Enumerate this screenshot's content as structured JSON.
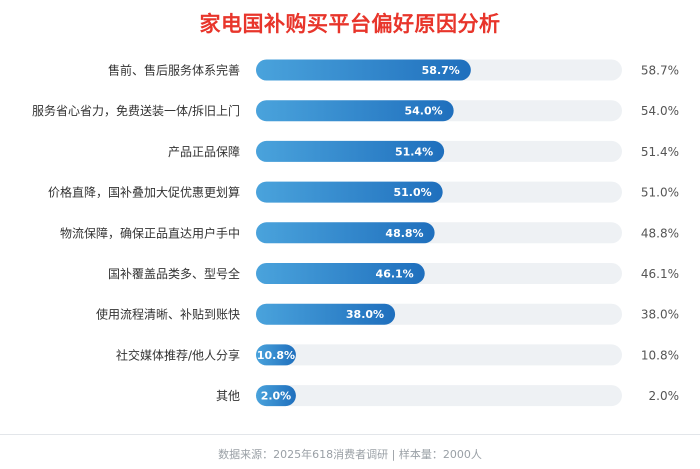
{
  "title": "家电国补购买平台偏好原因分析",
  "footer": "数据来源：2025年618消费者调研 | 样本量：2000人",
  "colors": {
    "title": "#e8352b",
    "bar_start": "#4aa3dc",
    "bar_end": "#1f6fbd",
    "track": "#eef1f4",
    "label": "#333333",
    "value_outside": "#555555",
    "value_inside": "#ffffff"
  },
  "chart_data": {
    "type": "bar",
    "orientation": "horizontal",
    "categories": [
      "售前、售后服务体系完善",
      "服务省心省力，免费送装一体/拆旧上门",
      "产品正品保障",
      "价格直降，国补叠加大促优惠更划算",
      "物流保障，确保正品直达用户手中",
      "国补覆盖品类多、型号全",
      "使用流程清晰、补贴到账快",
      "社交媒体推荐/他人分享",
      "其他"
    ],
    "values": [
      58.7,
      54.0,
      51.4,
      51.0,
      48.8,
      46.1,
      38.0,
      10.8,
      2.0
    ],
    "labels": [
      "58.7%",
      "54.0%",
      "51.4%",
      "51.0%",
      "48.8%",
      "46.1%",
      "38.0%",
      "10.8%",
      "2.0%"
    ],
    "xlim": [
      0,
      100
    ],
    "grid": false,
    "legend": "none"
  }
}
